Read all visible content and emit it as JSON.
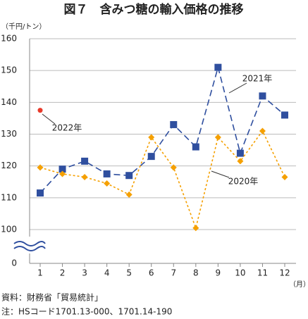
{
  "chart_data": {
    "type": "line",
    "title": "図７　含みつ糖の輸入価格の推移",
    "y_label": "（千円/トン）",
    "x_label": "（月）",
    "categories": [
      "1",
      "2",
      "3",
      "4",
      "5",
      "6",
      "7",
      "8",
      "9",
      "10",
      "11",
      "12"
    ],
    "series": [
      {
        "name": "2021年",
        "color": "#2f4f9f",
        "marker": "square",
        "dash": "dashed",
        "values": [
          111.5,
          119,
          121.5,
          117.5,
          117,
          123,
          133,
          126,
          151,
          124,
          142,
          136
        ]
      },
      {
        "name": "2020年",
        "color": "#f5a000",
        "marker": "diamond",
        "dash": "dotted",
        "values": [
          119.5,
          117.5,
          116.5,
          114.5,
          111,
          129,
          119.5,
          100.5,
          129,
          121.5,
          131,
          116.5
        ]
      },
      {
        "name": "2022年",
        "color": "#e83a2a",
        "marker": "circle",
        "dash": "none",
        "values": [
          137.5,
          null,
          null,
          null,
          null,
          null,
          null,
          null,
          null,
          null,
          null,
          null
        ]
      }
    ],
    "ylim": [
      100,
      160
    ],
    "yticks": [
      0,
      100,
      110,
      120,
      130,
      140,
      150,
      160
    ],
    "axis_break": true,
    "grid": true,
    "notes": [
      "資料：財務省「貿易統計」",
      "注：HSコード1701.13-000、1701.14-190"
    ]
  }
}
